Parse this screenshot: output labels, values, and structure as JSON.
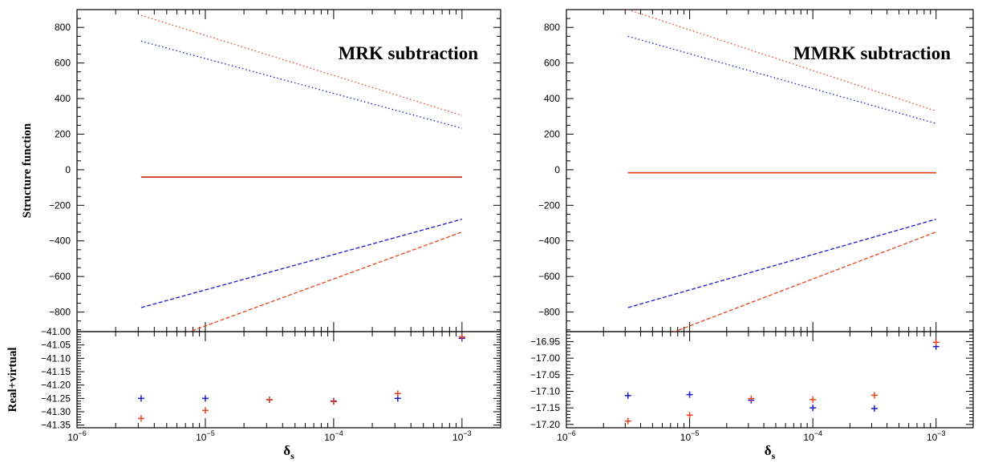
{
  "chart_data": [
    {
      "type": "line",
      "panel": "left",
      "annotation": "MRK subtraction",
      "ylabel_top": "Structure function",
      "ylabel_bottom": "Real+virtual",
      "xlabel": "δ",
      "xlabel_sub": "s",
      "xscale": "log",
      "xlim": [
        1e-06,
        0.002
      ],
      "xticks": [
        {
          "v": 1e-06,
          "e": "−6"
        },
        {
          "v": 1e-05,
          "e": "−5"
        },
        {
          "v": 0.0001,
          "e": "−4"
        },
        {
          "v": 0.001,
          "e": "−3"
        }
      ],
      "top": {
        "ylim": [
          -910,
          900
        ],
        "yticks": [
          800,
          600,
          400,
          200,
          0,
          -200,
          -400,
          -600,
          -800
        ],
        "series": [
          {
            "color": "#e8431a",
            "style": "dotted",
            "points": [
              [
                3.16e-06,
                868
              ],
              [
                0.001,
                305
              ]
            ]
          },
          {
            "color": "#1a1acc",
            "style": "dotted",
            "points": [
              [
                3.16e-06,
                723
              ],
              [
                0.001,
                233
              ]
            ]
          },
          {
            "color": "#1a1acc",
            "style": "solid",
            "points": [
              [
                3.16e-06,
                -41.25
              ],
              [
                0.001,
                -41.25
              ]
            ]
          },
          {
            "color": "#e8431a",
            "style": "solid",
            "points": [
              [
                3.16e-06,
                -41.3
              ],
              [
                0.001,
                -41.3
              ]
            ]
          },
          {
            "color": "#1a1acc",
            "style": "dashed",
            "points": [
              [
                3.16e-06,
                -775
              ],
              [
                0.001,
                -278
              ]
            ]
          },
          {
            "color": "#e8431a",
            "style": "dashed",
            "points": [
              [
                3.16e-06,
                -1010
              ],
              [
                0.001,
                -350
              ]
            ]
          }
        ]
      },
      "bottom": {
        "ylim": [
          -41.36,
          -41.0
        ],
        "yticks": [
          -41.0,
          -41.05,
          -41.1,
          -41.15,
          -41.2,
          -41.25,
          -41.3,
          -41.35
        ],
        "yticklabels": [
          "−41.00",
          "−41.05",
          "−41.10",
          "−41.15",
          "−41.20",
          "−41.25",
          "−41.30",
          "−41.35"
        ],
        "series": [
          {
            "color": "#1a1acc",
            "marker": "+",
            "points": [
              [
                3.16e-06,
                -41.25
              ],
              [
                1e-05,
                -41.25
              ],
              [
                3.16e-05,
                -41.255
              ],
              [
                0.0001,
                -41.26
              ],
              [
                0.000316,
                -41.25
              ],
              [
                0.001,
                -41.025
              ]
            ]
          },
          {
            "color": "#e8431a",
            "marker": "+",
            "points": [
              [
                3.16e-06,
                -41.325
              ],
              [
                1e-05,
                -41.295
              ],
              [
                3.16e-05,
                -41.255
              ],
              [
                0.0001,
                -41.262
              ],
              [
                0.000316,
                -41.232
              ],
              [
                0.001,
                -41.02
              ]
            ]
          }
        ]
      }
    },
    {
      "type": "line",
      "panel": "right",
      "annotation": "MMRK subtraction",
      "ylabel_top": "",
      "ylabel_bottom": "",
      "xlabel": "δ",
      "xlabel_sub": "s",
      "xscale": "log",
      "xlim": [
        1e-06,
        0.002
      ],
      "xticks": [
        {
          "v": 1e-06,
          "e": "−6"
        },
        {
          "v": 1e-05,
          "e": "−5"
        },
        {
          "v": 0.0001,
          "e": "−4"
        },
        {
          "v": 0.001,
          "e": "−3"
        }
      ],
      "top": {
        "ylim": [
          -910,
          900
        ],
        "yticks": [
          800,
          600,
          400,
          200,
          0,
          -200,
          -400,
          -600,
          -800
        ],
        "series": [
          {
            "color": "#e8431a",
            "style": "dotted",
            "points": [
              [
                3.16e-06,
                900
              ],
              [
                0.001,
                330
              ]
            ]
          },
          {
            "color": "#1a1acc",
            "style": "dotted",
            "points": [
              [
                3.16e-06,
                750
              ],
              [
                0.001,
                260
              ]
            ]
          },
          {
            "color": "#1a1acc",
            "style": "solid",
            "points": [
              [
                3.16e-06,
                -17.1
              ],
              [
                0.001,
                -17.1
              ]
            ]
          },
          {
            "color": "#e8431a",
            "style": "solid",
            "points": [
              [
                3.16e-06,
                -17.15
              ],
              [
                0.001,
                -17.15
              ]
            ]
          },
          {
            "color": "#1a1acc",
            "style": "dashed",
            "points": [
              [
                3.16e-06,
                -775
              ],
              [
                0.001,
                -278
              ]
            ]
          },
          {
            "color": "#e8431a",
            "style": "dashed",
            "points": [
              [
                3.16e-06,
                -1010
              ],
              [
                0.001,
                -350
              ]
            ]
          }
        ]
      },
      "bottom": {
        "ylim": [
          -17.21,
          -16.92
        ],
        "yticks": [
          -16.95,
          -17.0,
          -17.05,
          -17.1,
          -17.15,
          -17.2
        ],
        "yticklabels": [
          "−16.95",
          "−17.00",
          "−17.05",
          "−17.10",
          "−17.15",
          "−17.20"
        ],
        "series": [
          {
            "color": "#1a1acc",
            "marker": "+",
            "points": [
              [
                3.16e-06,
                -17.113
              ],
              [
                1e-05,
                -17.11
              ],
              [
                3.16e-05,
                -17.127
              ],
              [
                0.0001,
                -17.15
              ],
              [
                0.000316,
                -17.152
              ],
              [
                0.001,
                -16.965
              ]
            ]
          },
          {
            "color": "#e8431a",
            "marker": "+",
            "points": [
              [
                3.16e-06,
                -17.19
              ],
              [
                1e-05,
                -17.172
              ],
              [
                3.16e-05,
                -17.122
              ],
              [
                0.0001,
                -17.125
              ],
              [
                0.000316,
                -17.112
              ],
              [
                0.001,
                -16.952
              ]
            ]
          }
        ]
      }
    }
  ]
}
